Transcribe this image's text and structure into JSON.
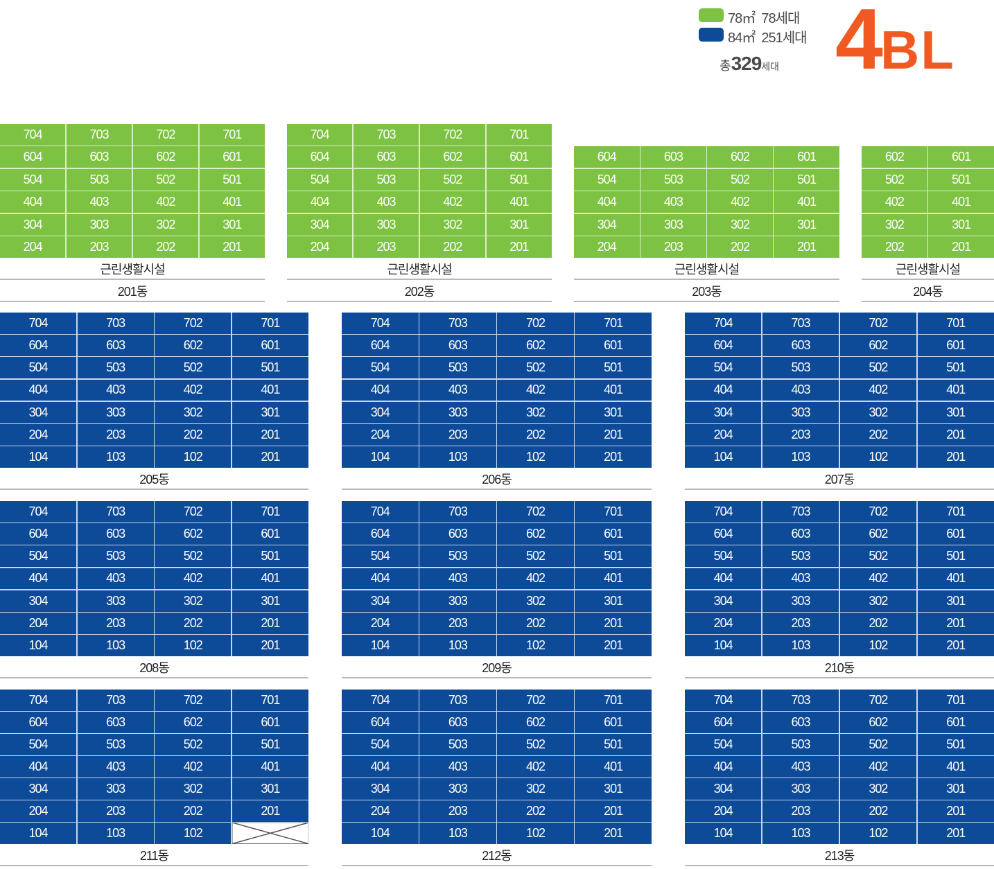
{
  "legend": {
    "items": [
      {
        "area": "78㎡",
        "units": "78세대",
        "color": "#7dc242"
      },
      {
        "area": "84㎡",
        "units": "251세대",
        "color": "#0d4a98"
      }
    ],
    "total_prefix": "총",
    "total_count": "329",
    "total_unit": "세대",
    "block_number": "4",
    "block_suffix": "BL"
  },
  "facility_label": "근린생활시설",
  "buildings": [
    {
      "name": "201동",
      "color": "green",
      "facility": true,
      "rows": [
        [
          "704",
          "703",
          "702",
          "701"
        ],
        [
          "604",
          "603",
          "602",
          "601"
        ],
        [
          "504",
          "503",
          "502",
          "501"
        ],
        [
          "404",
          "403",
          "402",
          "401"
        ],
        [
          "304",
          "303",
          "302",
          "301"
        ],
        [
          "204",
          "203",
          "202",
          "201"
        ]
      ]
    },
    {
      "name": "202동",
      "color": "green",
      "facility": true,
      "rows": [
        [
          "704",
          "703",
          "702",
          "701"
        ],
        [
          "604",
          "603",
          "602",
          "601"
        ],
        [
          "504",
          "503",
          "502",
          "501"
        ],
        [
          "404",
          "403",
          "402",
          "401"
        ],
        [
          "304",
          "303",
          "302",
          "301"
        ],
        [
          "204",
          "203",
          "202",
          "201"
        ]
      ]
    },
    {
      "name": "203동",
      "color": "green",
      "facility": true,
      "rows": [
        [
          "604",
          "603",
          "602",
          "601"
        ],
        [
          "504",
          "503",
          "502",
          "501"
        ],
        [
          "404",
          "403",
          "402",
          "401"
        ],
        [
          "304",
          "303",
          "302",
          "301"
        ],
        [
          "204",
          "203",
          "202",
          "201"
        ]
      ]
    },
    {
      "name": "204동",
      "color": "green",
      "facility": true,
      "rows": [
        [
          "602",
          "601"
        ],
        [
          "502",
          "501"
        ],
        [
          "402",
          "401"
        ],
        [
          "302",
          "301"
        ],
        [
          "202",
          "201"
        ]
      ]
    },
    {
      "name": "205동",
      "color": "blue",
      "rows": [
        [
          "704",
          "703",
          "702",
          "701"
        ],
        [
          "604",
          "603",
          "602",
          "601"
        ],
        [
          "504",
          "503",
          "502",
          "501"
        ],
        [
          "404",
          "403",
          "402",
          "401"
        ],
        [
          "304",
          "303",
          "302",
          "301"
        ],
        [
          "204",
          "203",
          "202",
          "201"
        ],
        [
          "104",
          "103",
          "102",
          "201"
        ]
      ]
    },
    {
      "name": "206동",
      "color": "blue",
      "rows": [
        [
          "704",
          "703",
          "702",
          "701"
        ],
        [
          "604",
          "603",
          "602",
          "601"
        ],
        [
          "504",
          "503",
          "502",
          "501"
        ],
        [
          "404",
          "403",
          "402",
          "401"
        ],
        [
          "304",
          "303",
          "302",
          "301"
        ],
        [
          "204",
          "203",
          "202",
          "201"
        ],
        [
          "104",
          "103",
          "102",
          "201"
        ]
      ]
    },
    {
      "name": "207동",
      "color": "blue",
      "rows": [
        [
          "704",
          "703",
          "702",
          "701"
        ],
        [
          "604",
          "603",
          "602",
          "601"
        ],
        [
          "504",
          "503",
          "502",
          "501"
        ],
        [
          "404",
          "403",
          "402",
          "401"
        ],
        [
          "304",
          "303",
          "302",
          "301"
        ],
        [
          "204",
          "203",
          "202",
          "201"
        ],
        [
          "104",
          "103",
          "102",
          "201"
        ]
      ]
    },
    {
      "name": "208동",
      "color": "blue",
      "rows": [
        [
          "704",
          "703",
          "702",
          "701"
        ],
        [
          "604",
          "603",
          "602",
          "601"
        ],
        [
          "504",
          "503",
          "502",
          "501"
        ],
        [
          "404",
          "403",
          "402",
          "401"
        ],
        [
          "304",
          "303",
          "302",
          "301"
        ],
        [
          "204",
          "203",
          "202",
          "201"
        ],
        [
          "104",
          "103",
          "102",
          "201"
        ]
      ]
    },
    {
      "name": "209동",
      "color": "blue",
      "rows": [
        [
          "704",
          "703",
          "702",
          "701"
        ],
        [
          "604",
          "603",
          "602",
          "601"
        ],
        [
          "504",
          "503",
          "502",
          "501"
        ],
        [
          "404",
          "403",
          "402",
          "401"
        ],
        [
          "304",
          "303",
          "302",
          "301"
        ],
        [
          "204",
          "203",
          "202",
          "201"
        ],
        [
          "104",
          "103",
          "102",
          "201"
        ]
      ]
    },
    {
      "name": "210동",
      "color": "blue",
      "rows": [
        [
          "704",
          "703",
          "702",
          "701"
        ],
        [
          "604",
          "603",
          "602",
          "601"
        ],
        [
          "504",
          "503",
          "502",
          "501"
        ],
        [
          "404",
          "403",
          "402",
          "401"
        ],
        [
          "304",
          "303",
          "302",
          "301"
        ],
        [
          "204",
          "203",
          "202",
          "201"
        ],
        [
          "104",
          "103",
          "102",
          "201"
        ]
      ]
    },
    {
      "name": "211동",
      "color": "blue",
      "rows": [
        [
          "704",
          "703",
          "702",
          "701"
        ],
        [
          "604",
          "603",
          "602",
          "601"
        ],
        [
          "504",
          "503",
          "502",
          "501"
        ],
        [
          "404",
          "403",
          "402",
          "401"
        ],
        [
          "304",
          "303",
          "302",
          "301"
        ],
        [
          "204",
          "203",
          "202",
          "201"
        ],
        [
          "104",
          "103",
          "102",
          ""
        ]
      ]
    },
    {
      "name": "212동",
      "color": "blue",
      "rows": [
        [
          "704",
          "703",
          "702",
          "701"
        ],
        [
          "604",
          "603",
          "602",
          "601"
        ],
        [
          "504",
          "503",
          "502",
          "501"
        ],
        [
          "404",
          "403",
          "402",
          "401"
        ],
        [
          "304",
          "303",
          "302",
          "301"
        ],
        [
          "204",
          "203",
          "202",
          "201"
        ],
        [
          "104",
          "103",
          "102",
          "201"
        ]
      ]
    },
    {
      "name": "213동",
      "color": "blue",
      "rows": [
        [
          "704",
          "703",
          "702",
          "701"
        ],
        [
          "604",
          "603",
          "602",
          "601"
        ],
        [
          "504",
          "503",
          "502",
          "501"
        ],
        [
          "404",
          "403",
          "402",
          "401"
        ],
        [
          "304",
          "303",
          "302",
          "301"
        ],
        [
          "204",
          "203",
          "202",
          "201"
        ],
        [
          "104",
          "103",
          "102",
          "201"
        ]
      ]
    }
  ]
}
